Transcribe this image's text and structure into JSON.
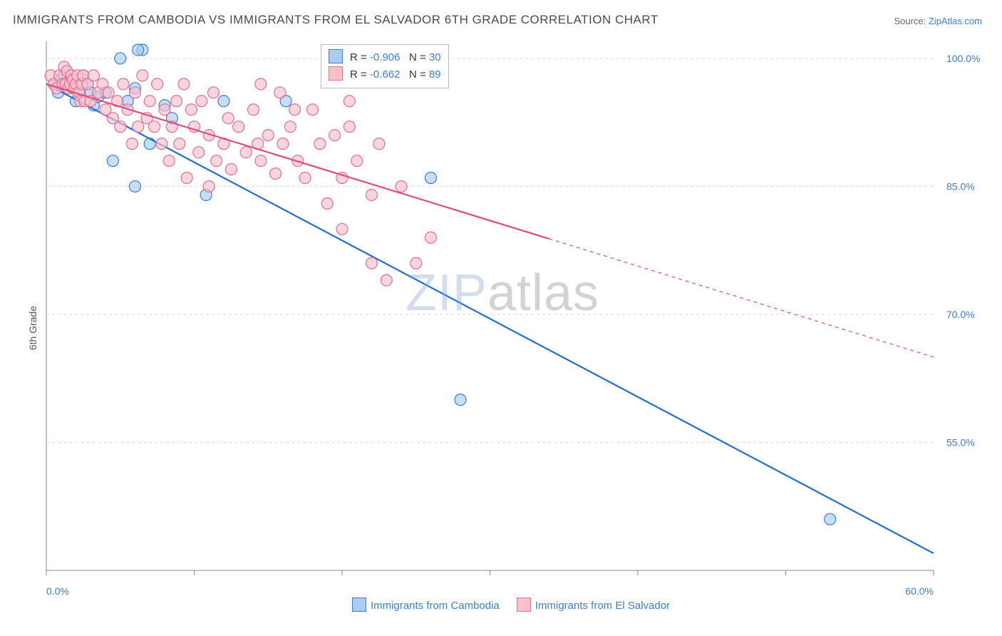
{
  "title": "IMMIGRANTS FROM CAMBODIA VS IMMIGRANTS FROM EL SALVADOR 6TH GRADE CORRELATION CHART",
  "source_label": "Source: ",
  "source_name": "ZipAtlas.com",
  "ylabel": "6th Grade",
  "watermark_a": "ZIP",
  "watermark_b": "atlas",
  "chart": {
    "type": "scatter",
    "background_color": "#ffffff",
    "grid_color": "#d9d9d9",
    "axis_color": "#888888",
    "tick_font_size": 14,
    "tick_color": "#3b7dd8",
    "xlim": [
      0,
      60
    ],
    "ylim": [
      40,
      102
    ],
    "x_ticks": [
      0,
      10,
      20,
      30,
      40,
      50,
      60
    ],
    "x_tick_labels": [
      "0.0%",
      "",
      "",
      "",
      "",
      "",
      "60.0%"
    ],
    "y_ticks": [
      55,
      70,
      85,
      100
    ],
    "y_tick_labels": [
      "55.0%",
      "70.0%",
      "85.0%",
      "100.0%"
    ],
    "series": [
      {
        "name": "Immigrants from Cambodia",
        "marker_fill": "#a9cdf2",
        "marker_stroke": "#3b7dd8",
        "line_color": "#1d6fd6",
        "line_width": 2.2,
        "marker_radius": 8,
        "R": "-0.906",
        "N": "30",
        "trend": {
          "x1": 0,
          "y1": 97,
          "x2": 60,
          "y2": 42,
          "solid_until_x": 60
        },
        "points": [
          [
            0.5,
            97
          ],
          [
            0.8,
            96
          ],
          [
            1.0,
            97.5
          ],
          [
            1.2,
            98
          ],
          [
            1.4,
            97
          ],
          [
            1.8,
            96.5
          ],
          [
            2.0,
            95
          ],
          [
            2.2,
            96
          ],
          [
            2.5,
            98
          ],
          [
            2.8,
            97
          ],
          [
            3.0,
            96
          ],
          [
            3.2,
            94.5
          ],
          [
            3.5,
            95.5
          ],
          [
            4,
            96
          ],
          [
            4.5,
            88
          ],
          [
            5.0,
            100
          ],
          [
            5.5,
            95
          ],
          [
            6,
            96.5
          ],
          [
            6.5,
            101
          ],
          [
            6,
            85
          ],
          [
            6.2,
            101
          ],
          [
            7,
            90
          ],
          [
            8,
            94.5
          ],
          [
            8.5,
            93
          ],
          [
            10.8,
            84
          ],
          [
            12,
            95
          ],
          [
            16.2,
            95
          ],
          [
            26,
            86
          ],
          [
            28,
            60
          ],
          [
            53,
            46
          ]
        ]
      },
      {
        "name": "Immigrants from El Salvador",
        "marker_fill": "#f6c0cc",
        "marker_stroke": "#e16f8e",
        "line_color": "#e34b77",
        "line_width": 2.2,
        "marker_radius": 8,
        "R": "-0.662",
        "N": "89",
        "trend": {
          "x1": 0,
          "y1": 97,
          "x2": 60,
          "y2": 65,
          "solid_until_x": 34
        },
        "points": [
          [
            0.3,
            98
          ],
          [
            0.5,
            97
          ],
          [
            0.7,
            96.5
          ],
          [
            0.9,
            98
          ],
          [
            1.1,
            97
          ],
          [
            1.2,
            99
          ],
          [
            1.3,
            97
          ],
          [
            1.4,
            98.5
          ],
          [
            1.5,
            96.5
          ],
          [
            1.6,
            97
          ],
          [
            1.7,
            98
          ],
          [
            1.8,
            97.5
          ],
          [
            1.9,
            96.5
          ],
          [
            2.0,
            97
          ],
          [
            2.1,
            98
          ],
          [
            2.2,
            96
          ],
          [
            2.3,
            95
          ],
          [
            2.4,
            97
          ],
          [
            2.5,
            98
          ],
          [
            2.6,
            95
          ],
          [
            2.8,
            97
          ],
          [
            3.0,
            95
          ],
          [
            3.2,
            98
          ],
          [
            3.5,
            96
          ],
          [
            3.8,
            97
          ],
          [
            4.0,
            94
          ],
          [
            4.2,
            96
          ],
          [
            4.5,
            93
          ],
          [
            4.8,
            95
          ],
          [
            5.0,
            92
          ],
          [
            5.2,
            97
          ],
          [
            5.5,
            94
          ],
          [
            5.8,
            90
          ],
          [
            6.0,
            96
          ],
          [
            6.2,
            92
          ],
          [
            6.5,
            98
          ],
          [
            6.8,
            93
          ],
          [
            7.0,
            95
          ],
          [
            7.3,
            92
          ],
          [
            7.5,
            97
          ],
          [
            7.8,
            90
          ],
          [
            8.0,
            94
          ],
          [
            8.3,
            88
          ],
          [
            8.5,
            92
          ],
          [
            8.8,
            95
          ],
          [
            9.0,
            90
          ],
          [
            9.3,
            97
          ],
          [
            9.5,
            86
          ],
          [
            9.8,
            94
          ],
          [
            10.0,
            92
          ],
          [
            10.3,
            89
          ],
          [
            10.5,
            95
          ],
          [
            11.0,
            91
          ],
          [
            11.3,
            96
          ],
          [
            11.5,
            88
          ],
          [
            12.0,
            90
          ],
          [
            12.3,
            93
          ],
          [
            12.5,
            87
          ],
          [
            13.0,
            92
          ],
          [
            13.5,
            89
          ],
          [
            14.0,
            94
          ],
          [
            14.3,
            90
          ],
          [
            14.5,
            97
          ],
          [
            15.0,
            91
          ],
          [
            15.5,
            86.5
          ],
          [
            16.0,
            90
          ],
          [
            16.5,
            92
          ],
          [
            16.8,
            94
          ],
          [
            17.0,
            88
          ],
          [
            17.5,
            86
          ],
          [
            18.0,
            94
          ],
          [
            18.5,
            90
          ],
          [
            19,
            83
          ],
          [
            19.5,
            91
          ],
          [
            20,
            86
          ],
          [
            20,
            80
          ],
          [
            20.5,
            95
          ],
          [
            21,
            88
          ],
          [
            22,
            84
          ],
          [
            22,
            76
          ],
          [
            23,
            74
          ],
          [
            24,
            85
          ],
          [
            25,
            76
          ],
          [
            26,
            79
          ],
          [
            20.5,
            92
          ],
          [
            22.5,
            90
          ],
          [
            14.5,
            88
          ],
          [
            11,
            85
          ],
          [
            15.8,
            96
          ]
        ]
      }
    ]
  },
  "legend": {
    "items": [
      {
        "label": "Immigrants from Cambodia",
        "fill": "#a9cdf2",
        "stroke": "#3b7dd8"
      },
      {
        "label": "Immigrants from El Salvador",
        "fill": "#f6c0cc",
        "stroke": "#e16f8e"
      }
    ]
  },
  "statbox": {
    "R_label": "R = ",
    "N_label": "N = "
  }
}
